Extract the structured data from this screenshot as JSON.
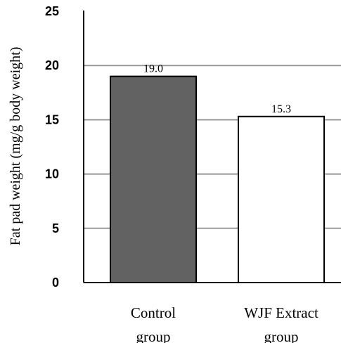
{
  "chart_data": {
    "type": "bar",
    "categories": [
      [
        "Control",
        "group"
      ],
      [
        "WJF Extract",
        "group"
      ]
    ],
    "values": [
      19.0,
      15.3
    ],
    "value_labels": [
      "19.0",
      "15.3"
    ],
    "ylabel": "Fat pad weight (mg/g body weight)",
    "ylim": [
      0,
      25
    ],
    "yticks": [
      0,
      5,
      10,
      15,
      20,
      25
    ],
    "grid": true,
    "colors": {
      "bars": [
        "#626262",
        "#ffffff"
      ],
      "bar_stroke": "#000000",
      "grid": "#999999",
      "axis": "#000000"
    }
  }
}
